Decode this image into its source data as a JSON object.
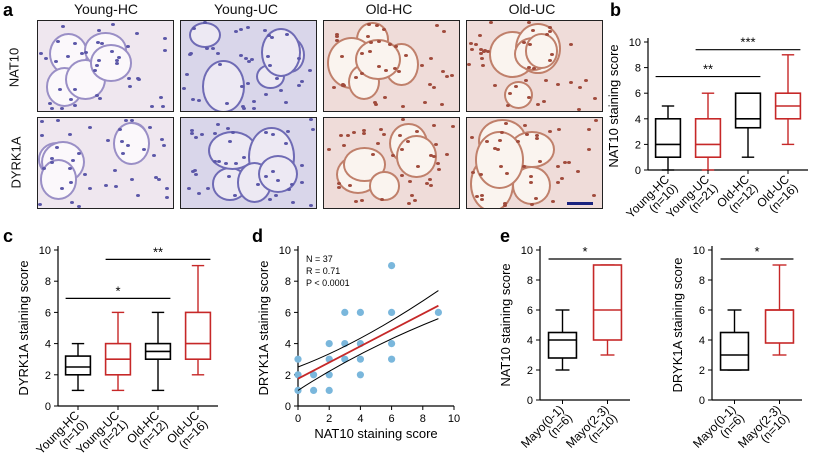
{
  "panel_letters": {
    "a": "a",
    "b": "b",
    "c": "c",
    "d": "d",
    "e": "e"
  },
  "micrographs": {
    "columns": [
      "Young-HC",
      "Young-UC",
      "Old-HC",
      "Old-UC"
    ],
    "rows": [
      "NAT10",
      "DYRK1A"
    ]
  },
  "chart_data": [
    {
      "id": "b",
      "type": "box",
      "ylabel": "NAT10 staining score",
      "ylim": [
        0,
        10
      ],
      "yticks": [
        0,
        2,
        4,
        6,
        8,
        10
      ],
      "categories": [
        "Young-HC\n(n=10)",
        "Young-UC\n(n=21)",
        "Old-HC\n(n=12)",
        "Old-UC\n(n=16)"
      ],
      "colors": [
        "#000000",
        "#c62828",
        "#000000",
        "#c62828"
      ],
      "boxes": [
        {
          "min": 0,
          "q1": 1,
          "median": 2,
          "q3": 4,
          "max": 5
        },
        {
          "min": 0,
          "q1": 1,
          "median": 2,
          "q3": 4,
          "max": 6
        },
        {
          "min": 1,
          "q1": 3.3,
          "median": 4,
          "q3": 6,
          "max": 6
        },
        {
          "min": 2,
          "q1": 4,
          "median": 5,
          "q3": 6,
          "max": 9
        }
      ],
      "significance": [
        {
          "from": 0,
          "to": 2,
          "label": "**",
          "y": 7.3
        },
        {
          "from": 1,
          "to": 3,
          "label": "***",
          "y": 9.4
        }
      ]
    },
    {
      "id": "c",
      "type": "box",
      "ylabel": "DYRK1A staining score",
      "ylim": [
        0,
        10
      ],
      "yticks": [
        0,
        2,
        4,
        6,
        8,
        10
      ],
      "categories": [
        "Young-HC\n(n=10)",
        "Young-UC\n(n=21)",
        "Old-HC\n(n=12)",
        "Old-UC\n(n=16)"
      ],
      "colors": [
        "#000000",
        "#c62828",
        "#000000",
        "#c62828"
      ],
      "boxes": [
        {
          "min": 1,
          "q1": 2,
          "median": 2.5,
          "q3": 3.2,
          "max": 4
        },
        {
          "min": 1,
          "q1": 2,
          "median": 3,
          "q3": 4,
          "max": 6
        },
        {
          "min": 1,
          "q1": 3,
          "median": 3.5,
          "q3": 4,
          "max": 6
        },
        {
          "min": 2,
          "q1": 3,
          "median": 4,
          "q3": 6,
          "max": 9
        }
      ],
      "significance": [
        {
          "from": 0,
          "to": 2,
          "label": "*",
          "y": 6.9
        },
        {
          "from": 1,
          "to": 3,
          "label": "**",
          "y": 9.4
        }
      ]
    },
    {
      "id": "d",
      "type": "scatter",
      "xlabel": "NAT10 staining score",
      "ylabel": "DRYK1A staining score",
      "xlim": [
        0,
        10
      ],
      "ylim": [
        0,
        10
      ],
      "xticks": [
        0,
        2,
        4,
        6,
        8,
        10
      ],
      "yticks": [
        0,
        2,
        4,
        6,
        8,
        10
      ],
      "points": [
        [
          0,
          3
        ],
        [
          0,
          1
        ],
        [
          0,
          2
        ],
        [
          1,
          1
        ],
        [
          1,
          2
        ],
        [
          2,
          1
        ],
        [
          2,
          2
        ],
        [
          2,
          3
        ],
        [
          2,
          4
        ],
        [
          3,
          3
        ],
        [
          3,
          4
        ],
        [
          3,
          6
        ],
        [
          4,
          3
        ],
        [
          4,
          2
        ],
        [
          4,
          4
        ],
        [
          4,
          6
        ],
        [
          6,
          3
        ],
        [
          6,
          4
        ],
        [
          6,
          6
        ],
        [
          6,
          9
        ],
        [
          9,
          6
        ]
      ],
      "fit": {
        "slope": 0.52,
        "intercept": 1.75,
        "ci_low": [
          [
            0,
            1.0
          ],
          [
            4,
            3.6
          ],
          [
            9,
            5.6
          ]
        ],
        "ci_high": [
          [
            0,
            2.5
          ],
          [
            4,
            4.0
          ],
          [
            9,
            7.4
          ]
        ]
      },
      "stats": [
        "N = 37",
        "R = 0.71",
        "P < 0.0001"
      ]
    },
    {
      "id": "e1",
      "type": "box",
      "ylabel": "NAT10 staining score",
      "ylim": [
        0,
        10
      ],
      "yticks": [
        0,
        2,
        4,
        6,
        8,
        10
      ],
      "categories": [
        "Mayo(0-1)\n(n=6)",
        "Mayo(2-3)\n(n=10)"
      ],
      "colors": [
        "#000000",
        "#c62828"
      ],
      "boxes": [
        {
          "min": 2,
          "q1": 2.8,
          "median": 4,
          "q3": 4.5,
          "max": 6
        },
        {
          "min": 3,
          "q1": 4,
          "median": 6,
          "q3": 9,
          "max": 9
        }
      ],
      "significance": [
        {
          "from": 0,
          "to": 1,
          "label": "*",
          "y": 9.4
        }
      ]
    },
    {
      "id": "e2",
      "type": "box",
      "ylabel": "DRYK1A staining score",
      "ylim": [
        0,
        10
      ],
      "yticks": [
        0,
        2,
        4,
        6,
        8,
        10
      ],
      "categories": [
        "Mayo(0-1)\n(n=6)",
        "Mayo(2-3)\n(n=10)"
      ],
      "colors": [
        "#000000",
        "#c62828"
      ],
      "boxes": [
        {
          "min": 2,
          "q1": 2,
          "median": 3,
          "q3": 4.5,
          "max": 6
        },
        {
          "min": 3,
          "q1": 3.8,
          "median": 6,
          "q3": 6,
          "max": 9
        }
      ],
      "significance": [
        {
          "from": 0,
          "to": 1,
          "label": "*",
          "y": 9.4
        }
      ]
    }
  ]
}
